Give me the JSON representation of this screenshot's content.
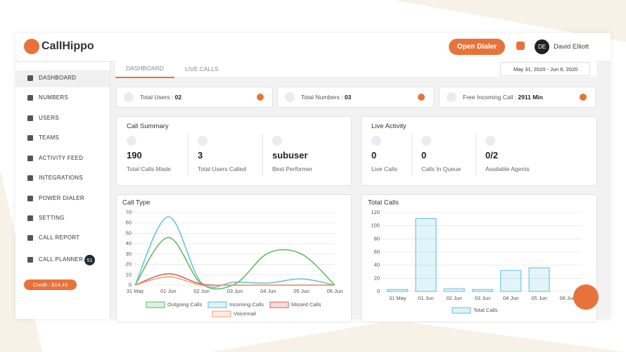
{
  "header": {
    "logo": "CallHippo",
    "open_dialer": "Open Dialer",
    "user_initials": "DE",
    "user_name": "David Elliott"
  },
  "sidebar": {
    "items": [
      "DASHBOARD",
      "NUMBERS",
      "USERS",
      "TEAMS",
      "ACTIVITY FEED",
      "INTEGRATIONS",
      "POWER DIALER",
      "SETTING",
      "CALL REPORT",
      "CALL PLANNER"
    ],
    "call_planner_badge": "51",
    "credit": "Credit : $14.43"
  },
  "tabs": [
    "DASHBOARD",
    "LIVE CALLS"
  ],
  "date_range": "May 31, 2020 - Jun 6, 2020",
  "stats": [
    {
      "label": "Total Users : ",
      "value": "02"
    },
    {
      "label": "Total Numbers : ",
      "value": "03"
    },
    {
      "label": "Free Incoming Call : ",
      "value": "2911 Min"
    }
  ],
  "call_summary": {
    "title": "Call Summary",
    "items": [
      {
        "value": "190",
        "label": "Total Calls Made"
      },
      {
        "value": "3",
        "label": "Total Users Called"
      },
      {
        "value": "subuser",
        "label": "Best Performer"
      }
    ]
  },
  "live_activity": {
    "title": "Live Activity",
    "items": [
      {
        "value": "0",
        "label": "Live Calls"
      },
      {
        "value": "0",
        "label": "Calls In Queue"
      },
      {
        "value": "0/2",
        "label": "Available Agents"
      }
    ]
  },
  "chart_data": [
    {
      "type": "line",
      "title": "Call Type",
      "categories": [
        "31 May",
        "01 Jun",
        "02 Jun",
        "03 Jun",
        "04 Jun",
        "05 Jun",
        "06 Jun"
      ],
      "ylim": [
        0,
        70
      ],
      "yticks": [
        0,
        10,
        20,
        30,
        40,
        50,
        60,
        70
      ],
      "grid": true,
      "series": [
        {
          "name": "Outgoing Calls",
          "color": "#5cb85c",
          "values": [
            0,
            46,
            1,
            1,
            31,
            30,
            0
          ]
        },
        {
          "name": "Incoming Calls",
          "color": "#5bc0de",
          "values": [
            0,
            66,
            2,
            3,
            2,
            6,
            0
          ]
        },
        {
          "name": "Missed Calls",
          "color": "#e05a4e",
          "values": [
            0,
            11,
            1,
            0,
            0,
            0,
            0
          ]
        },
        {
          "name": "Voicemail",
          "color": "#f0a070",
          "values": [
            0,
            8,
            0,
            0,
            0,
            0,
            0
          ]
        }
      ]
    },
    {
      "type": "bar",
      "title": "Total Calls",
      "categories": [
        "31 May",
        "01 Jun",
        "02 Jun",
        "03 Jun",
        "04 Jun",
        "05 Jun",
        "06 Jun"
      ],
      "ylim": [
        0,
        120
      ],
      "yticks": [
        0,
        20,
        40,
        60,
        80,
        100,
        120
      ],
      "grid": true,
      "series": [
        {
          "name": "Total Calls",
          "color": "#5bc0de",
          "values": [
            3,
            111,
            4,
            3,
            32,
            36,
            0
          ]
        }
      ]
    }
  ]
}
